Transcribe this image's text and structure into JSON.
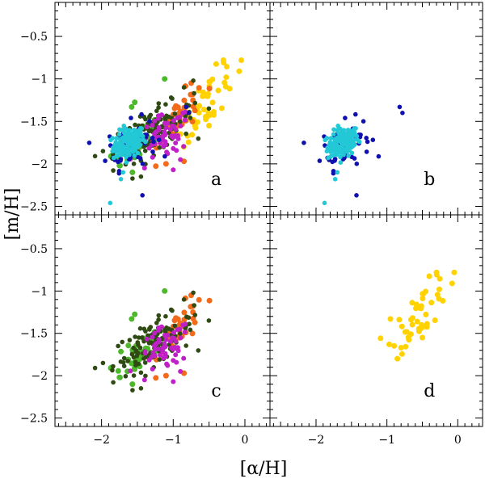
{
  "chart_data": {
    "type": "scatter",
    "xlabel": "[α/H]",
    "ylabel": "[m/H]",
    "xlim": [
      -2.65,
      0.35
    ],
    "ylim": [
      -2.6,
      -0.1
    ],
    "xticks": [
      -2,
      -1,
      0
    ],
    "yticks": [
      -2.5,
      -2,
      -1.5,
      -1,
      -0.5
    ],
    "xtick_labels": [
      "−2",
      "−1",
      "0"
    ],
    "ytick_labels": [
      "−2.5",
      "−2",
      "−1.5",
      "−1",
      "−0.5"
    ],
    "colors": {
      "cyan": "#22c8d6",
      "blue": "#1010b0",
      "darkgreen": "#2f4a12",
      "green": "#4cb82a",
      "magenta": "#c020c8",
      "orange": "#f26a1a",
      "yellow": "#ffd200"
    },
    "clusters": {
      "cyan": {
        "cx": -1.62,
        "cy": -1.75,
        "sx": 0.11,
        "sy": 0.09,
        "n": 140,
        "r": 2.8,
        "corr": 0.3
      },
      "blue": {
        "cx": -1.58,
        "cy": -1.76,
        "sx": 0.17,
        "sy": 0.14,
        "n": 70,
        "r": 2.8,
        "corr": 0.3
      },
      "darkgreen": {
        "cx": -1.28,
        "cy": -1.62,
        "sx": 0.28,
        "sy": 0.17,
        "n": 120,
        "r": 2.8,
        "corr": 0.65
      },
      "green": {
        "cx": -1.45,
        "cy": -1.72,
        "sx": 0.2,
        "sy": 0.17,
        "n": 40,
        "r": 3.5,
        "corr": 0.5
      },
      "magenta": {
        "cx": -1.12,
        "cy": -1.68,
        "sx": 0.18,
        "sy": 0.14,
        "n": 55,
        "r": 3.0,
        "corr": 0.4
      },
      "orange": {
        "cx": -0.88,
        "cy": -1.45,
        "sx": 0.16,
        "sy": 0.17,
        "n": 35,
        "r": 3.5,
        "corr": 0.6
      },
      "yellow": {
        "cx": -0.52,
        "cy": -1.25,
        "sx": 0.2,
        "sy": 0.21,
        "n": 45,
        "r": 3.5,
        "corr": 0.75
      }
    },
    "extra_points": {
      "blue": [
        [
          -0.82,
          -1.33
        ],
        [
          -0.78,
          -1.4
        ],
        [
          -1.43,
          -2.37
        ]
      ],
      "cyan": [
        [
          -1.88,
          -2.46
        ],
        [
          -1.73,
          -2.18
        ],
        [
          -1.7,
          -2.1
        ]
      ],
      "yellow": [
        [
          -0.05,
          -0.78
        ],
        [
          -0.3,
          -0.78
        ],
        [
          -0.08,
          -0.91
        ],
        [
          -0.95,
          -1.33
        ],
        [
          -0.8,
          -1.67
        ],
        [
          -0.5,
          -1.55
        ]
      ],
      "magenta": [
        [
          -1.0,
          -2.07
        ],
        [
          -1.0,
          -1.82
        ],
        [
          -1.4,
          -2.05
        ],
        [
          -0.9,
          -1.95
        ]
      ],
      "green": [
        [
          -1.58,
          -1.33
        ],
        [
          -1.75,
          -2.02
        ],
        [
          -1.57,
          -2.1
        ],
        [
          -1.12,
          -1.0
        ]
      ],
      "darkgreen": [
        [
          -0.72,
          -1.02
        ],
        [
          -1.98,
          -1.85
        ],
        [
          -1.45,
          -2.15
        ],
        [
          -0.85,
          -1.1
        ]
      ],
      "orange": [
        [
          -1.1,
          -2.0
        ],
        [
          -0.85,
          -1.97
        ],
        [
          -0.75,
          -1.05
        ]
      ]
    },
    "panels": [
      {
        "id": "a",
        "label": "a",
        "groups": [
          "cyan",
          "blue",
          "darkgreen",
          "green",
          "magenta",
          "orange",
          "yellow"
        ],
        "draw_order": [
          "yellow",
          "orange",
          "green",
          "darkgreen",
          "magenta",
          "blue",
          "cyan"
        ]
      },
      {
        "id": "b",
        "label": "b",
        "groups": [
          "cyan",
          "blue"
        ],
        "draw_order": [
          "blue",
          "cyan"
        ]
      },
      {
        "id": "c",
        "label": "c",
        "groups": [
          "darkgreen",
          "green",
          "magenta",
          "orange"
        ],
        "draw_order": [
          "orange",
          "green",
          "darkgreen",
          "magenta"
        ]
      },
      {
        "id": "d",
        "label": "d",
        "groups": [
          "yellow"
        ],
        "draw_order": [
          "yellow"
        ]
      }
    ]
  }
}
